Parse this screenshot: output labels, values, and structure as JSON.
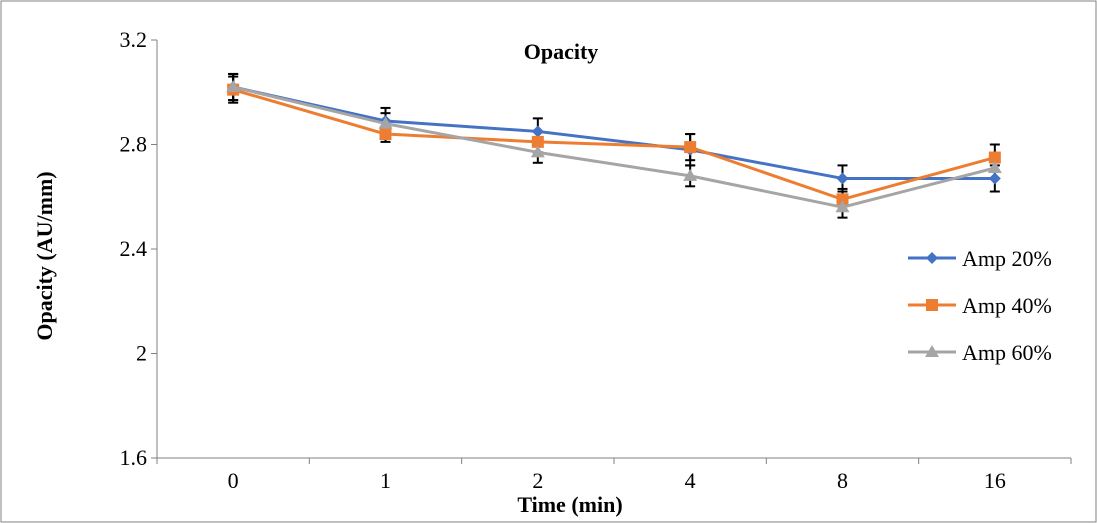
{
  "chart_data": {
    "type": "line",
    "title": "Opacity",
    "xlabel": "Time (min)",
    "ylabel": "Opacity  (AU/mm)",
    "categories": [
      "0",
      "1",
      "2",
      "4",
      "8",
      "16"
    ],
    "ylim": [
      1.6,
      3.2
    ],
    "yticks": [
      "1.6",
      "2",
      "2.4",
      "2.8",
      "3.2"
    ],
    "grid": false,
    "legend_position": "right",
    "series": [
      {
        "name": "Amp 20%",
        "color": "#4472C4",
        "marker": "diamond",
        "values": [
          3.02,
          2.89,
          2.85,
          2.78,
          2.67,
          2.67
        ],
        "errors": [
          0.05,
          0.05,
          0.05,
          0.06,
          0.05,
          0.05
        ]
      },
      {
        "name": "Amp 40%",
        "color": "#ED7D31",
        "marker": "square",
        "values": [
          3.01,
          2.84,
          2.81,
          2.79,
          2.59,
          2.75
        ],
        "errors": [
          0.05,
          0.03,
          0.04,
          0.05,
          0.04,
          0.05
        ]
      },
      {
        "name": "Amp 60%",
        "color": "#A5A5A5",
        "marker": "triangle",
        "values": [
          3.02,
          2.88,
          2.77,
          2.68,
          2.56,
          2.71
        ],
        "errors": [
          0.05,
          0.04,
          0.04,
          0.04,
          0.04,
          0.04
        ]
      }
    ]
  }
}
